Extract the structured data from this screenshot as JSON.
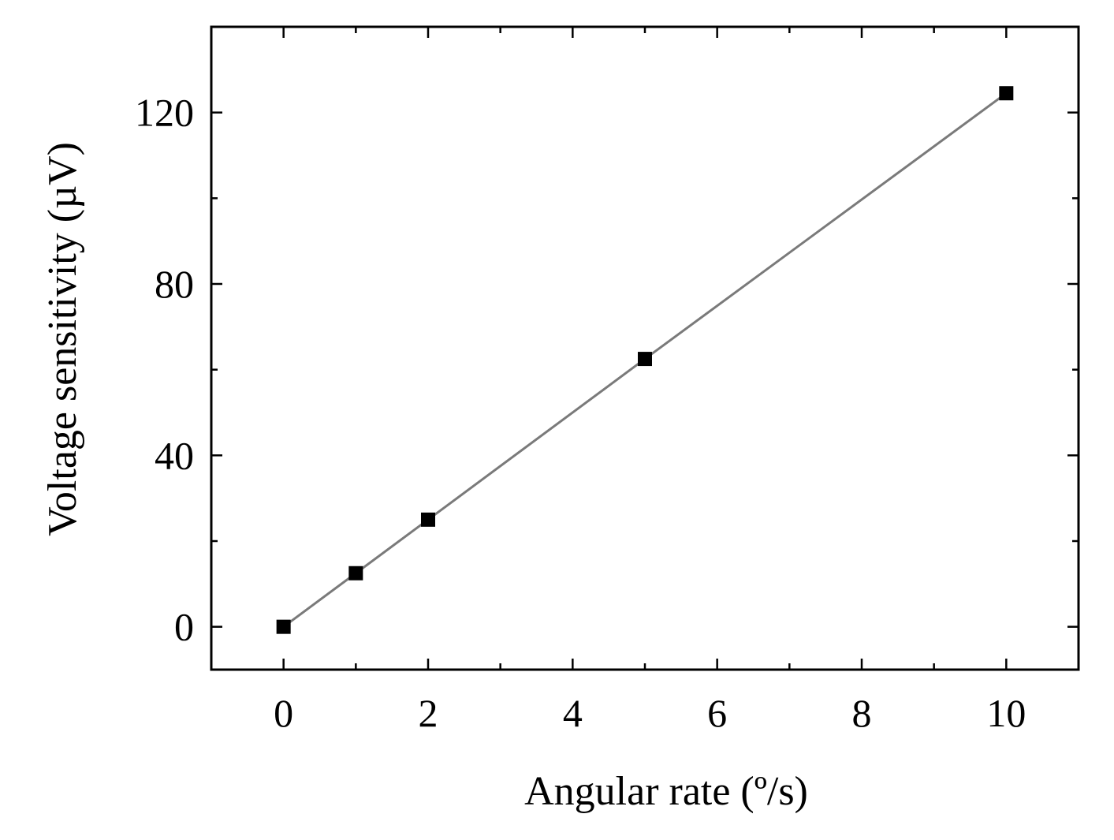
{
  "chart_data": {
    "type": "line",
    "title": "",
    "xlabel": "Angular rate (º/s)",
    "ylabel": "Voltage sensitivity (µV)",
    "xlim": [
      -1,
      11
    ],
    "ylim": [
      -10,
      140
    ],
    "x_ticks": [
      0,
      2,
      4,
      6,
      8,
      10
    ],
    "x_tick_labels": [
      "0",
      "2",
      "4",
      "6",
      "8",
      "10"
    ],
    "x_minor_ticks": [
      1,
      3,
      5,
      7,
      9
    ],
    "y_ticks": [
      0,
      40,
      80,
      120
    ],
    "y_tick_labels": [
      "0",
      "40",
      "80",
      "120"
    ],
    "y_minor_ticks": [
      20,
      60,
      100
    ],
    "grid": false,
    "legend": "none",
    "series": [
      {
        "x": [
          0,
          1,
          2,
          5,
          10
        ],
        "values": [
          0,
          12.5,
          25,
          62.5,
          124.5
        ],
        "marker": "square",
        "marker_color": "#000000",
        "line_color": "#7a7a7a"
      }
    ]
  }
}
